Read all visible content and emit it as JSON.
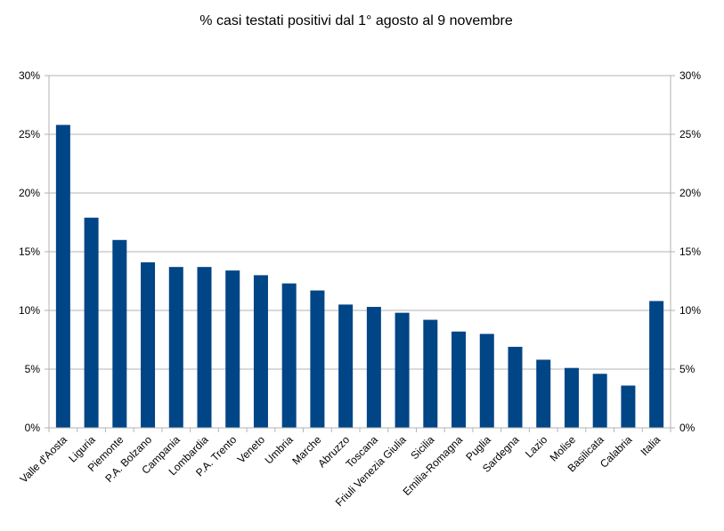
{
  "chart_data": {
    "type": "bar",
    "title": "% casi testati positivi dal 1° agosto al 9 novembre",
    "categories": [
      "Valle d'Aosta",
      "Liguria",
      "Piemonte",
      "P.A. Bolzano",
      "Campania",
      "Lombardia",
      "P.A. Trento",
      "Veneto",
      "Umbria",
      "Marche",
      "Abruzzo",
      "Toscana",
      "Friuli Venezia Giulia",
      "Sicilia",
      "Emilia-Romagna",
      "Puglia",
      "Sardegna",
      "Lazio",
      "Molise",
      "Basilicata",
      "Calabria",
      "Italia"
    ],
    "values": [
      25.8,
      17.9,
      16.0,
      14.1,
      13.7,
      13.7,
      13.4,
      13.0,
      12.3,
      11.7,
      10.5,
      10.3,
      9.8,
      9.2,
      8.2,
      8.0,
      6.9,
      5.8,
      5.1,
      4.6,
      3.6,
      10.8
    ],
    "ylim": [
      0,
      30
    ],
    "yticks": [
      "0%",
      "5%",
      "10%",
      "15%",
      "20%",
      "25%",
      "30%"
    ],
    "y_axis_sides": "left and right",
    "grid": true,
    "bar_color": "#004586",
    "xlabel": "",
    "ylabel": ""
  }
}
